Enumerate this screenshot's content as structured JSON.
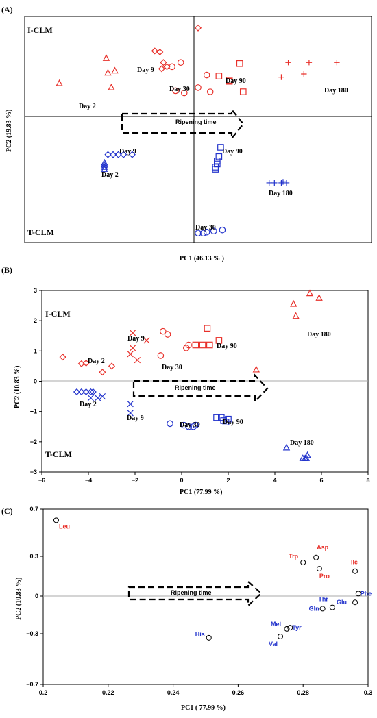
{
  "colors": {
    "red": "#e8302a",
    "blue": "#2233cc",
    "black": "#000000",
    "axisline": "#999999"
  },
  "chart_data": [
    {
      "type": "scatter",
      "panel": "(A)",
      "xlabel": "PC1 (46.13 % )",
      "ylabel": "PC2 (19.83 %)",
      "group_labels": {
        "top": "I-CLM",
        "bottom": "T-CLM"
      },
      "arrow_label": "Ripening time",
      "annotations": [
        "Day 9",
        "Day 30",
        "Day 90",
        "Day 180",
        "Day 2",
        "Day 9",
        "Day 90",
        "Day 2",
        "Day  180",
        "Day  30"
      ],
      "series": [
        {
          "group": "I-CLM",
          "day": 2,
          "marker": "triangle",
          "color": "red",
          "points": [
            [
              -0.8,
              0.44
            ],
            [
              -0.53,
              0.68
            ],
            [
              -0.52,
              0.54
            ],
            [
              -0.5,
              0.4
            ],
            [
              -0.48,
              0.56
            ]
          ]
        },
        {
          "group": "I-CLM",
          "day": 9,
          "marker": "diamond",
          "color": "red",
          "points": [
            [
              -0.25,
              0.75
            ],
            [
              -0.22,
              0.74
            ],
            [
              -0.2,
              0.64
            ],
            [
              -0.18,
              0.6
            ],
            [
              -0.21,
              0.58
            ],
            [
              0.0,
              0.97
            ]
          ]
        },
        {
          "group": "I-CLM",
          "day": 30,
          "marker": "circle",
          "color": "red",
          "points": [
            [
              -0.15,
              0.6
            ],
            [
              -0.1,
              0.64
            ],
            [
              -0.13,
              0.37
            ],
            [
              0.0,
              0.4
            ],
            [
              0.07,
              0.36
            ],
            [
              0.05,
              0.52
            ],
            [
              -0.08,
              0.35
            ]
          ]
        },
        {
          "group": "I-CLM",
          "day": 90,
          "marker": "square",
          "color": "red",
          "points": [
            [
              0.24,
              0.63
            ],
            [
              0.12,
              0.51
            ],
            [
              0.18,
              0.47
            ],
            [
              0.26,
              0.36
            ],
            [
              0.18,
              0.46
            ]
          ]
        },
        {
          "group": "I-CLM",
          "day": 180,
          "marker": "plus",
          "color": "red",
          "points": [
            [
              0.52,
              0.64
            ],
            [
              0.64,
              0.64
            ],
            [
              0.8,
              0.64
            ],
            [
              0.48,
              0.5
            ],
            [
              0.61,
              0.53
            ]
          ]
        },
        {
          "group": "T-CLM",
          "day": 2,
          "marker": "triangle",
          "color": "blue",
          "points": [
            [
              -0.54,
              -0.32
            ],
            [
              -0.54,
              -0.34
            ],
            [
              -0.54,
              -0.36
            ],
            [
              -0.54,
              -0.38
            ]
          ]
        },
        {
          "group": "T-CLM",
          "day": 9,
          "marker": "diamond",
          "color": "blue",
          "points": [
            [
              -0.52,
              -0.24
            ],
            [
              -0.49,
              -0.24
            ],
            [
              -0.46,
              -0.24
            ],
            [
              -0.43,
              -0.24
            ],
            [
              -0.38,
              -0.24
            ]
          ]
        },
        {
          "group": "T-CLM",
          "day": 30,
          "marker": "circle",
          "color": "blue",
          "points": [
            [
              0.0,
              -0.99
            ],
            [
              0.03,
              -0.99
            ],
            [
              0.05,
              -0.98
            ],
            [
              0.09,
              -0.97
            ],
            [
              0.14,
              -0.96
            ]
          ]
        },
        {
          "group": "T-CLM",
          "day": 90,
          "marker": "square",
          "color": "blue",
          "points": [
            [
              0.13,
              -0.17
            ],
            [
              0.12,
              -0.26
            ],
            [
              0.11,
              -0.3
            ],
            [
              0.11,
              -0.33
            ],
            [
              0.1,
              -0.36
            ],
            [
              0.1,
              -0.38
            ]
          ]
        },
        {
          "group": "T-CLM",
          "day": 180,
          "marker": "plus",
          "color": "blue",
          "points": [
            [
              0.41,
              -0.51
            ],
            [
              0.44,
              -0.51
            ],
            [
              0.48,
              -0.51
            ],
            [
              0.49,
              -0.5
            ],
            [
              0.51,
              -0.51
            ]
          ]
        }
      ]
    },
    {
      "type": "scatter",
      "panel": "(B)",
      "xlabel": "PC1 (77.99 %)",
      "ylabel": "PC2 (10.83 %)",
      "xlim": [
        -6,
        8
      ],
      "ylim": [
        -3,
        3
      ],
      "xticks": [
        "−6",
        "−4",
        "−2",
        "0",
        "2",
        "4",
        "6",
        "8"
      ],
      "yticks": [
        "3",
        "2",
        "1",
        "0",
        "−1",
        "−2",
        "−3"
      ],
      "group_labels": {
        "top": "I-CLM",
        "bottom": "T-CLM"
      },
      "arrow_label": "Ripening time",
      "annotations": [
        "Day 9",
        "Day 2",
        "Day 30",
        "Day 90",
        "Day 180",
        "Day 2",
        "Day 9",
        "Day 30",
        "Day 90",
        "Day 180"
      ],
      "series": [
        {
          "group": "I-CLM",
          "day": 2,
          "marker": "diamond",
          "color": "red",
          "points": [
            [
              -5.1,
              0.8
            ],
            [
              -4.3,
              0.58
            ],
            [
              -4.1,
              0.6
            ],
            [
              -3.4,
              0.3
            ],
            [
              -3.0,
              0.5
            ]
          ]
        },
        {
          "group": "I-CLM",
          "day": 9,
          "marker": "cross",
          "color": "red",
          "points": [
            [
              -2.2,
              0.9
            ],
            [
              -2.1,
              1.1
            ],
            [
              -1.9,
              0.7
            ],
            [
              -1.5,
              1.35
            ],
            [
              -2.1,
              1.6
            ]
          ]
        },
        {
          "group": "I-CLM",
          "day": 30,
          "marker": "circle",
          "color": "red",
          "points": [
            [
              -0.9,
              0.85
            ],
            [
              -0.8,
              1.65
            ],
            [
              -0.6,
              1.55
            ],
            [
              0.2,
              1.1
            ],
            [
              0.3,
              1.2
            ]
          ]
        },
        {
          "group": "I-CLM",
          "day": 90,
          "marker": "square",
          "color": "red",
          "points": [
            [
              0.6,
              1.2
            ],
            [
              0.9,
              1.2
            ],
            [
              1.2,
              1.2
            ],
            [
              1.6,
              1.35
            ],
            [
              1.1,
              1.75
            ]
          ]
        },
        {
          "group": "I-CLM",
          "day": 180,
          "marker": "triangle",
          "color": "red",
          "points": [
            [
              3.2,
              0.38
            ],
            [
              4.8,
              2.55
            ],
            [
              4.9,
              2.15
            ],
            [
              5.5,
              2.9
            ],
            [
              5.9,
              2.75
            ]
          ]
        },
        {
          "group": "T-CLM",
          "day": 2,
          "marker": "diamond",
          "color": "blue",
          "points": [
            [
              -4.5,
              -0.35
            ],
            [
              -4.3,
              -0.35
            ],
            [
              -4.1,
              -0.35
            ],
            [
              -3.9,
              -0.35
            ],
            [
              -3.8,
              -0.35
            ]
          ]
        },
        {
          "group": "T-CLM",
          "day": 9,
          "marker": "cross",
          "color": "blue",
          "points": [
            [
              -3.9,
              -0.55
            ],
            [
              -3.6,
              -0.55
            ],
            [
              -3.4,
              -0.5
            ],
            [
              -2.2,
              -0.75
            ],
            [
              -2.2,
              -1.05
            ]
          ]
        },
        {
          "group": "T-CLM",
          "day": 30,
          "marker": "circle",
          "color": "blue",
          "points": [
            [
              -0.5,
              -1.4
            ],
            [
              0.1,
              -1.45
            ],
            [
              0.3,
              -1.5
            ],
            [
              0.5,
              -1.5
            ],
            [
              0.6,
              -1.45
            ]
          ]
        },
        {
          "group": "T-CLM",
          "day": 90,
          "marker": "square",
          "color": "blue",
          "points": [
            [
              1.5,
              -1.2
            ],
            [
              1.7,
              -1.2
            ],
            [
              1.8,
              -1.3
            ],
            [
              1.9,
              -1.35
            ],
            [
              2.0,
              -1.25
            ]
          ]
        },
        {
          "group": "T-CLM",
          "day": 180,
          "marker": "triangle",
          "color": "blue",
          "points": [
            [
              4.5,
              -2.2
            ],
            [
              5.2,
              -2.55
            ],
            [
              5.3,
              -2.55
            ],
            [
              5.4,
              -2.45
            ],
            [
              5.35,
              -2.55
            ]
          ]
        }
      ]
    },
    {
      "type": "scatter",
      "panel": "(C)",
      "xlabel": "PC1 ( 77.99 %)",
      "ylabel": "PC2 (10.83 %)",
      "xlim": [
        0.2,
        0.3
      ],
      "ylim": [
        -0.7,
        0.7
      ],
      "xticks": [
        "0.2",
        "0.22",
        "0.24",
        "0.26",
        "0.28",
        "0.3"
      ],
      "yticks": [
        "0.7",
        "0.3",
        "0",
        "−0.3",
        "−0.7"
      ],
      "arrow_label": "Ripening time",
      "points": [
        {
          "label": "Leu",
          "color": "red",
          "x": 0.204,
          "y": 0.61
        },
        {
          "label": "Asp",
          "color": "red",
          "x": 0.284,
          "y": 0.31
        },
        {
          "label": "Trp",
          "color": "red",
          "x": 0.28,
          "y": 0.27
        },
        {
          "label": "Pro",
          "color": "red",
          "x": 0.285,
          "y": 0.22
        },
        {
          "label": "Ile",
          "color": "red",
          "x": 0.296,
          "y": 0.2
        },
        {
          "label": "Thr",
          "color": "blue",
          "x": 0.289,
          "y": -0.09
        },
        {
          "label": "Glu",
          "color": "blue",
          "x": 0.296,
          "y": -0.05
        },
        {
          "label": "Phe",
          "color": "blue",
          "x": 0.297,
          "y": 0.02
        },
        {
          "label": "Gln",
          "color": "blue",
          "x": 0.286,
          "y": -0.1
        },
        {
          "label": "Met",
          "color": "blue",
          "x": 0.275,
          "y": -0.26
        },
        {
          "label": "Tyr",
          "color": "blue",
          "x": 0.276,
          "y": -0.25
        },
        {
          "label": "Val",
          "color": "blue",
          "x": 0.273,
          "y": -0.32
        },
        {
          "label": "His",
          "color": "blue",
          "x": 0.251,
          "y": -0.33
        }
      ]
    }
  ]
}
